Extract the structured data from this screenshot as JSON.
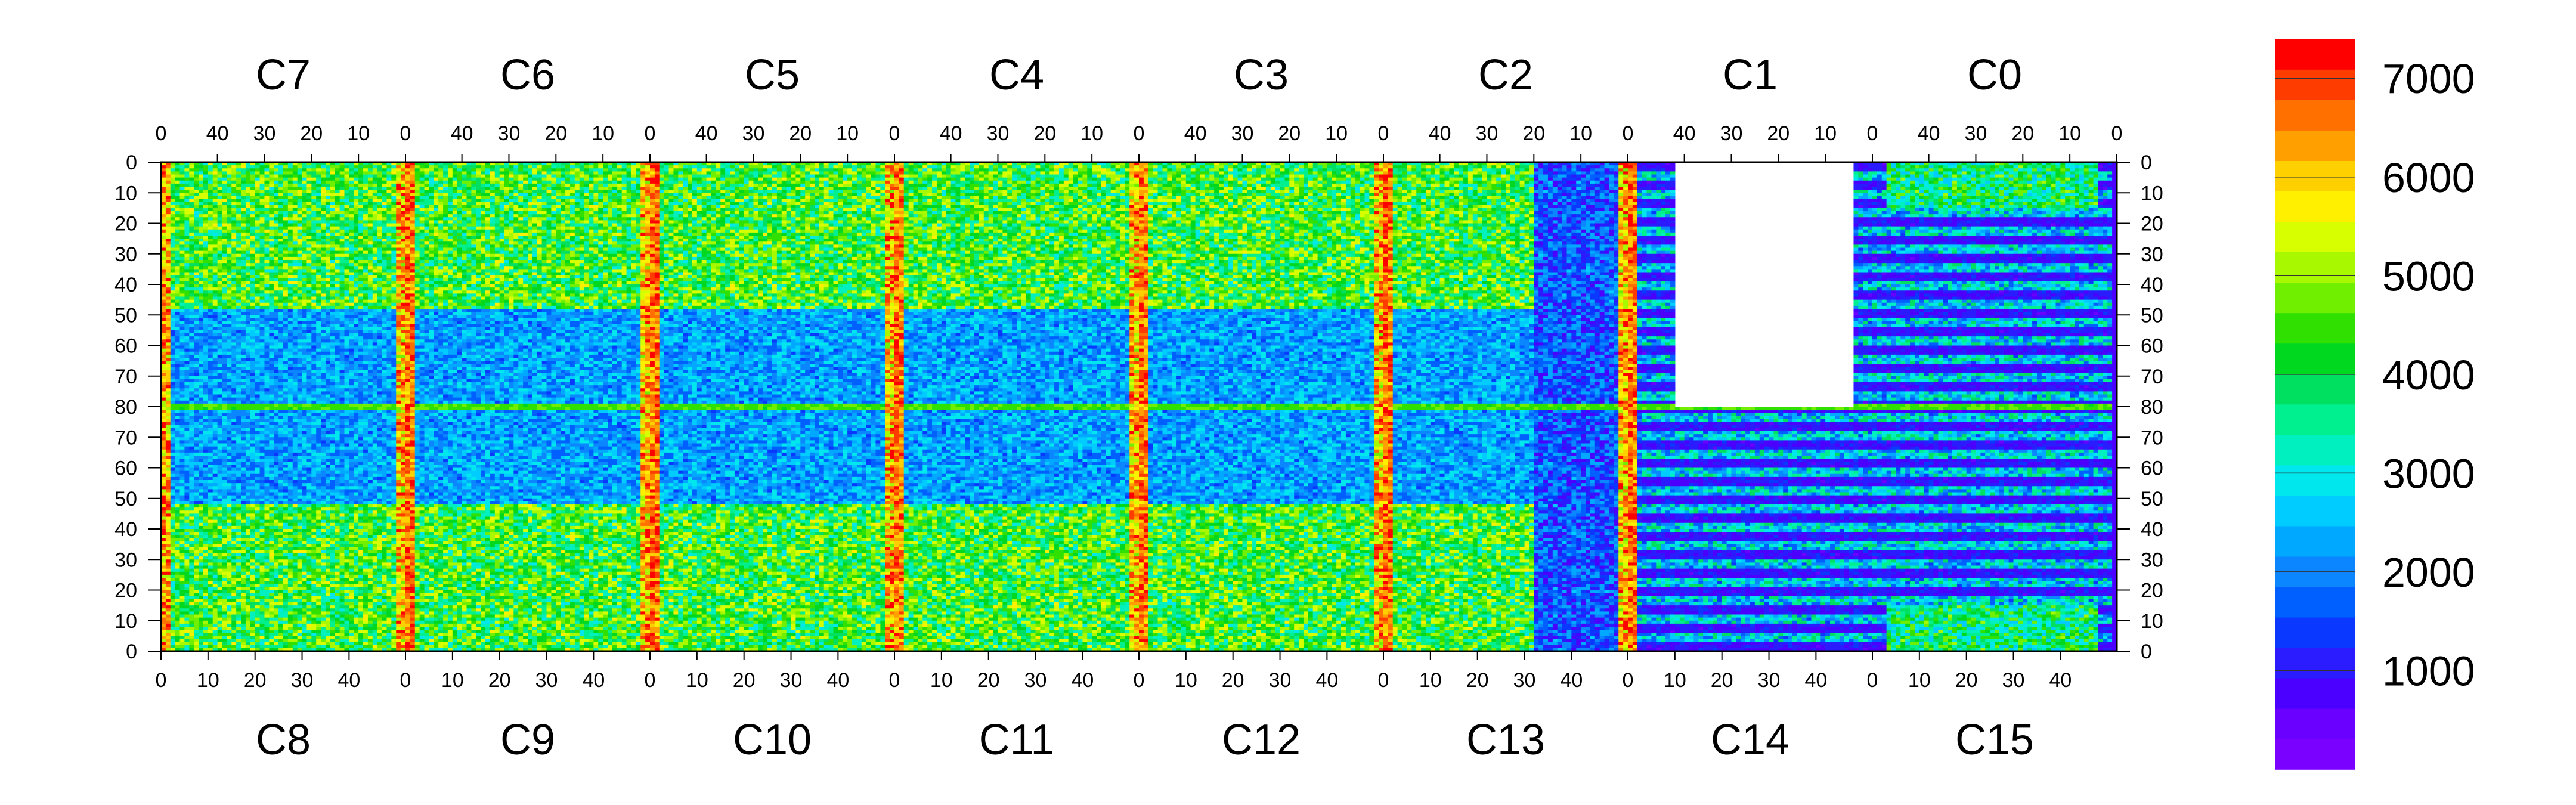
{
  "chart_data": {
    "type": "heatmap",
    "title": "",
    "top_chip_labels": [
      "C7",
      "C6",
      "C5",
      "C4",
      "C3",
      "C2",
      "C1",
      "C0"
    ],
    "bottom_chip_labels": [
      "C8",
      "C9",
      "C10",
      "C11",
      "C12",
      "C13",
      "C14",
      "C15"
    ],
    "top_axis_ticks": [
      "40",
      "30",
      "20",
      "10",
      "0"
    ],
    "bottom_axis_ticks": [
      "0",
      "10",
      "20",
      "30",
      "40"
    ],
    "top_axis_ticks_last_panel": [
      "40",
      "30",
      "20",
      "10",
      "0"
    ],
    "first_top_tick_label": "0",
    "y_left_ticks": [
      "0",
      "10",
      "20",
      "30",
      "40",
      "50",
      "60",
      "70",
      "80",
      "70",
      "60",
      "50",
      "40",
      "30",
      "20",
      "10",
      "0"
    ],
    "y_right_ticks": [
      "0",
      "10",
      "20",
      "30",
      "40",
      "50",
      "60",
      "70",
      "80",
      "70",
      "60",
      "50",
      "40",
      "30",
      "20",
      "10",
      "0"
    ],
    "x_range_per_chip": [
      0,
      52
    ],
    "y_range_per_half": [
      0,
      80
    ],
    "colorbar": {
      "min": 0,
      "max": 7400,
      "ticks": [
        1000,
        2000,
        3000,
        4000,
        5000,
        6000,
        7000
      ],
      "tick_labels": [
        "1000",
        "2000",
        "3000",
        "4000",
        "5000",
        "6000",
        "7000"
      ],
      "palette": [
        "#7a00ff",
        "#6a00ff",
        "#4b00ff",
        "#2b1cff",
        "#0a38ff",
        "#0060ff",
        "#0b86ff",
        "#00a8ff",
        "#00ccff",
        "#00e8ee",
        "#00f0c0",
        "#00f090",
        "#00e060",
        "#00d820",
        "#30e000",
        "#70f000",
        "#a8f800",
        "#d8ff00",
        "#fff000",
        "#ffd000",
        "#ffa000",
        "#ff7000",
        "#ff3c00",
        "#ff0000"
      ]
    },
    "cells_description": "Pixel hit-occupancy map for 16 front-end chips (C0-C15) arranged 8 top x 8 bottom; values mostly 1500-5500 counts, with hot red columns at chip edges and a blank (no data) region in C1/C14 top.",
    "blank_region": {
      "chip": "C1",
      "x_range": [
        10,
        47
      ],
      "y_range_top_half": [
        0,
        80
      ]
    },
    "grid": false
  }
}
